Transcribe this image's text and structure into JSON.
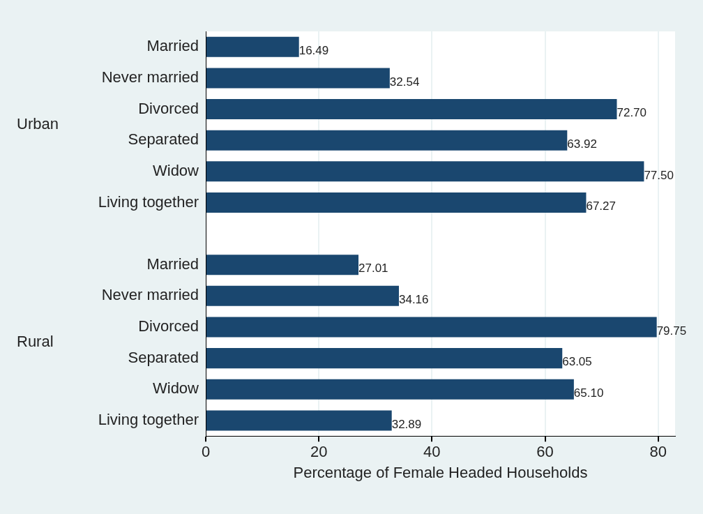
{
  "chart_data": {
    "type": "bar",
    "orientation": "horizontal",
    "xlabel": "Percentage of Female Headed Households",
    "categories": [
      "Married",
      "Never married",
      "Divorced",
      "Separated",
      "Widow",
      "Living together",
      null,
      "Married",
      "Never married",
      "Divorced",
      "Separated",
      "Widow",
      "Living together"
    ],
    "values": [
      16.49,
      32.54,
      72.7,
      63.92,
      77.5,
      67.27,
      null,
      27.01,
      34.16,
      79.75,
      63.05,
      65.1,
      32.89
    ],
    "value_labels": [
      "16.49",
      "32.54",
      "72.70",
      "63.92",
      "77.50",
      "67.27",
      null,
      "27.01",
      "34.16",
      "79.75",
      "63.05",
      "65.10",
      "32.89"
    ],
    "color": "#1a476f",
    "xlim": [
      0,
      83
    ],
    "xticks": [
      0,
      20,
      40,
      60,
      80
    ],
    "grid": "x",
    "legend": false,
    "annotations": [
      "Urban",
      "Rural"
    ]
  }
}
